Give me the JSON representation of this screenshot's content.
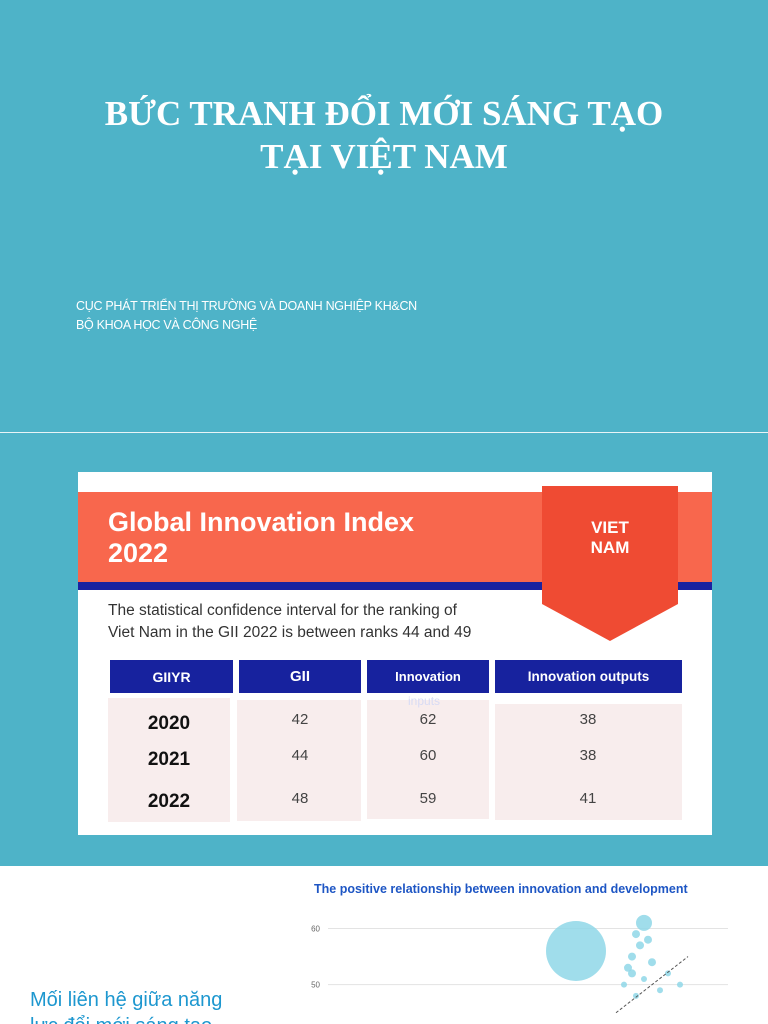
{
  "slide1": {
    "title_line1": "BỨC TRANH ĐỔI MỚI SÁNG TẠO",
    "title_line2": "TẠI VIỆT NAM",
    "subtitle_line1": "CỤC PHÁT TRIỂN THỊ TRƯỜNG VÀ DOANH NGHIỆP KH&CN",
    "subtitle_line2": "BỘ KHOA HỌC VÀ CÔNG NGHỆ"
  },
  "slide2": {
    "heading_line1": "Global Innovation Index",
    "heading_line2": "2022",
    "badge_line1": "VIET",
    "badge_line2": "NAM",
    "confidence_line1": "The statistical confidence interval for the ranking of",
    "confidence_line2": "Viet Nam in the GII 2022 is between ranks 44 and 49",
    "table": {
      "headers": [
        "GIIYR",
        "GII",
        "Innovation",
        "Innovation outputs"
      ],
      "header_overflow": "inputs",
      "rows": [
        {
          "year": "2020",
          "gii": "42",
          "inputs": "62",
          "outputs": "38"
        },
        {
          "year": "2021",
          "gii": "44",
          "inputs": "60",
          "outputs": "38"
        },
        {
          "year": "2022",
          "gii": "48",
          "inputs": "59",
          "outputs": "41"
        }
      ]
    },
    "colors": {
      "banner": "#f8674d",
      "navy": "#17229e",
      "badge": "#ef4b33",
      "cell_bg": "#f8eded"
    }
  },
  "slide3": {
    "text_line1": "Mối liên hệ giữa năng",
    "text_line2": "lực đổi mới sáng tạo",
    "chart_title": "The positive relationship between innovation and development",
    "chart_data": {
      "type": "scatter",
      "title": "The positive relationship between innovation and development",
      "yticks": [
        "60",
        "50"
      ],
      "points": [
        {
          "x": 0.62,
          "y": 56,
          "size": 30
        },
        {
          "x": 0.79,
          "y": 61,
          "size": 8
        },
        {
          "x": 0.77,
          "y": 59,
          "size": 4
        },
        {
          "x": 0.78,
          "y": 57,
          "size": 4
        },
        {
          "x": 0.8,
          "y": 58,
          "size": 4
        },
        {
          "x": 0.76,
          "y": 55,
          "size": 4
        },
        {
          "x": 0.75,
          "y": 53,
          "size": 4
        },
        {
          "x": 0.76,
          "y": 52,
          "size": 4
        },
        {
          "x": 0.81,
          "y": 54,
          "size": 4
        },
        {
          "x": 0.79,
          "y": 51,
          "size": 3
        },
        {
          "x": 0.74,
          "y": 50,
          "size": 3
        },
        {
          "x": 0.85,
          "y": 52,
          "size": 3
        },
        {
          "x": 0.88,
          "y": 50,
          "size": 3
        },
        {
          "x": 0.83,
          "y": 49,
          "size": 3
        },
        {
          "x": 0.77,
          "y": 48,
          "size": 3
        }
      ],
      "trend": {
        "x0": 0.72,
        "y0": 45,
        "x1": 0.9,
        "y1": 55
      },
      "ylim": [
        43,
        64
      ],
      "xlim": [
        0,
        1
      ],
      "colors": {
        "point": "#8fd7e8",
        "trend": "#555555"
      }
    }
  }
}
